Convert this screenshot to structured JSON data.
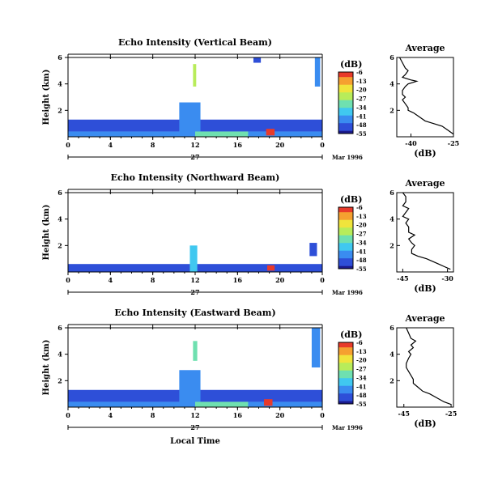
{
  "chart_data": [
    {
      "type": "heatmap",
      "title": "Echo Intensity (Vertical Beam)",
      "ylabel": "Height (km)",
      "xlim": [
        0,
        24
      ],
      "ylim": [
        0,
        6
      ],
      "x_ticks": [
        "0",
        "4",
        "8",
        "12",
        "16",
        "20",
        "0"
      ],
      "y_ticks": [
        "2",
        "4",
        "6"
      ],
      "date_day": "27",
      "date_month": "Mar 1996",
      "colorbar": {
        "label": "(dB)",
        "ticks": [
          "-6",
          "-13",
          "-20",
          "-27",
          "-34",
          "-41",
          "-48",
          "-55"
        ],
        "range": [
          -55,
          -6
        ]
      },
      "profile": {
        "title": "Average",
        "xlabel": "(dB)",
        "x_ticks": [
          "-40",
          "-25"
        ],
        "xlim": [
          -45,
          -25
        ],
        "points": [
          [
            -44,
            6.0
          ],
          [
            -43,
            5.6
          ],
          [
            -42,
            5.2
          ],
          [
            -41,
            5.0
          ],
          [
            -42,
            4.7
          ],
          [
            -43,
            4.5
          ],
          [
            -40,
            4.3
          ],
          [
            -38,
            4.2
          ],
          [
            -41,
            4.0
          ],
          [
            -42,
            3.8
          ],
          [
            -43,
            3.5
          ],
          [
            -43,
            3.2
          ],
          [
            -42,
            3.0
          ],
          [
            -43,
            2.8
          ],
          [
            -42,
            2.5
          ],
          [
            -41,
            2.2
          ],
          [
            -41,
            2.0
          ],
          [
            -39,
            1.8
          ],
          [
            -37,
            1.5
          ],
          [
            -35,
            1.2
          ],
          [
            -32,
            1.0
          ],
          [
            -29,
            0.8
          ],
          [
            -27,
            0.5
          ],
          [
            -25,
            0.2
          ]
        ]
      },
      "blocks": [
        {
          "t0": 0,
          "t1": 24,
          "h0": 0.4,
          "h1": 1.3,
          "v": -48
        },
        {
          "t0": 0,
          "t1": 24,
          "h0": 0.0,
          "h1": 0.4,
          "v": -40
        },
        {
          "t0": 10.5,
          "t1": 12.5,
          "h0": 0.0,
          "h1": 2.6,
          "v": -40
        },
        {
          "t0": 11.8,
          "t1": 12.1,
          "h0": 3.8,
          "h1": 5.5,
          "v": -25
        },
        {
          "t0": 12,
          "t1": 17,
          "h0": 0.0,
          "h1": 0.4,
          "v": -28
        },
        {
          "t0": 18.7,
          "t1": 19.5,
          "h0": 0.1,
          "h1": 0.6,
          "v": -6
        },
        {
          "t0": 17.5,
          "t1": 18.2,
          "h0": 5.6,
          "h1": 6.0,
          "v": -50
        },
        {
          "t0": 23.3,
          "t1": 23.8,
          "h0": 3.8,
          "h1": 6.0,
          "v": -42
        }
      ]
    },
    {
      "type": "heatmap",
      "title": "Echo Intensity (Northward Beam)",
      "ylabel": "Height (km)",
      "xlim": [
        0,
        24
      ],
      "ylim": [
        0,
        6
      ],
      "x_ticks": [
        "0",
        "4",
        "8",
        "12",
        "16",
        "20",
        "0"
      ],
      "y_ticks": [
        "2",
        "4",
        "6"
      ],
      "date_day": "27",
      "date_month": "Mar 1996",
      "colorbar": {
        "label": "(dB)",
        "ticks": [
          "-6",
          "-13",
          "-20",
          "-27",
          "-34",
          "-41",
          "-48",
          "-55"
        ],
        "range": [
          -55,
          -6
        ]
      },
      "profile": {
        "title": "Average",
        "xlabel": "(dB)",
        "x_ticks": [
          "-45",
          "-30"
        ],
        "xlim": [
          -47,
          -28
        ],
        "points": [
          [
            -45,
            6.0
          ],
          [
            -44,
            5.7
          ],
          [
            -44,
            5.3
          ],
          [
            -45,
            5.0
          ],
          [
            -43,
            4.8
          ],
          [
            -44,
            4.5
          ],
          [
            -45,
            4.2
          ],
          [
            -43,
            4.0
          ],
          [
            -44,
            3.7
          ],
          [
            -43,
            3.4
          ],
          [
            -43,
            3.0
          ],
          [
            -41,
            2.8
          ],
          [
            -43,
            2.5
          ],
          [
            -42,
            2.2
          ],
          [
            -41,
            2.0
          ],
          [
            -42,
            1.7
          ],
          [
            -42,
            1.4
          ],
          [
            -40,
            1.2
          ],
          [
            -37,
            1.0
          ],
          [
            -35,
            0.8
          ],
          [
            -33,
            0.6
          ],
          [
            -31,
            0.4
          ],
          [
            -29,
            0.2
          ]
        ]
      },
      "blocks": [
        {
          "t0": 0,
          "t1": 24,
          "h0": 0.0,
          "h1": 0.6,
          "v": -48
        },
        {
          "t0": 11.5,
          "t1": 12.2,
          "h0": 0.0,
          "h1": 2.0,
          "v": -38
        },
        {
          "t0": 18.8,
          "t1": 19.5,
          "h0": 0.1,
          "h1": 0.5,
          "v": -6
        },
        {
          "t0": 22.8,
          "t1": 23.5,
          "h0": 1.2,
          "h1": 2.2,
          "v": -48
        }
      ]
    },
    {
      "type": "heatmap",
      "title": "Echo Intensity (Eastward Beam)",
      "ylabel": "Height (km)",
      "xlabel": "Local Time",
      "xlim": [
        0,
        24
      ],
      "ylim": [
        0,
        6
      ],
      "x_ticks": [
        "0",
        "4",
        "8",
        "12",
        "16",
        "20",
        "0"
      ],
      "y_ticks": [
        "2",
        "4",
        "6"
      ],
      "date_day": "27",
      "date_month": "Mar 1996",
      "colorbar": {
        "label": "(dB)",
        "ticks": [
          "-6",
          "-13",
          "-20",
          "-27",
          "-34",
          "-41",
          "-48",
          "-55"
        ],
        "range": [
          -55,
          -6
        ]
      },
      "profile": {
        "title": "Average",
        "xlabel": "(dB)",
        "x_ticks": [
          "-45",
          "-25"
        ],
        "xlim": [
          -48,
          -24
        ],
        "points": [
          [
            -44,
            6.0
          ],
          [
            -43,
            5.6
          ],
          [
            -42,
            5.2
          ],
          [
            -40,
            5.0
          ],
          [
            -42,
            4.7
          ],
          [
            -41,
            4.5
          ],
          [
            -43,
            4.2
          ],
          [
            -42,
            4.0
          ],
          [
            -43,
            3.7
          ],
          [
            -44,
            3.3
          ],
          [
            -44,
            3.0
          ],
          [
            -43,
            2.7
          ],
          [
            -42,
            2.4
          ],
          [
            -41,
            2.1
          ],
          [
            -41,
            1.8
          ],
          [
            -39,
            1.5
          ],
          [
            -37,
            1.2
          ],
          [
            -34,
            1.0
          ],
          [
            -31,
            0.7
          ],
          [
            -28,
            0.4
          ],
          [
            -25,
            0.2
          ]
        ]
      },
      "blocks": [
        {
          "t0": 0,
          "t1": 24,
          "h0": 0.4,
          "h1": 1.3,
          "v": -48
        },
        {
          "t0": 0,
          "t1": 24,
          "h0": 0.0,
          "h1": 0.4,
          "v": -40
        },
        {
          "t0": 10.5,
          "t1": 12.5,
          "h0": 0.0,
          "h1": 2.8,
          "v": -42
        },
        {
          "t0": 11.8,
          "t1": 12.2,
          "h0": 3.5,
          "h1": 5.0,
          "v": -30
        },
        {
          "t0": 12,
          "t1": 17,
          "h0": 0.0,
          "h1": 0.4,
          "v": -28
        },
        {
          "t0": 18.5,
          "t1": 19.3,
          "h0": 0.1,
          "h1": 0.6,
          "v": -6
        },
        {
          "t0": 23.0,
          "t1": 23.8,
          "h0": 3.0,
          "h1": 6.0,
          "v": -42
        }
      ]
    }
  ]
}
